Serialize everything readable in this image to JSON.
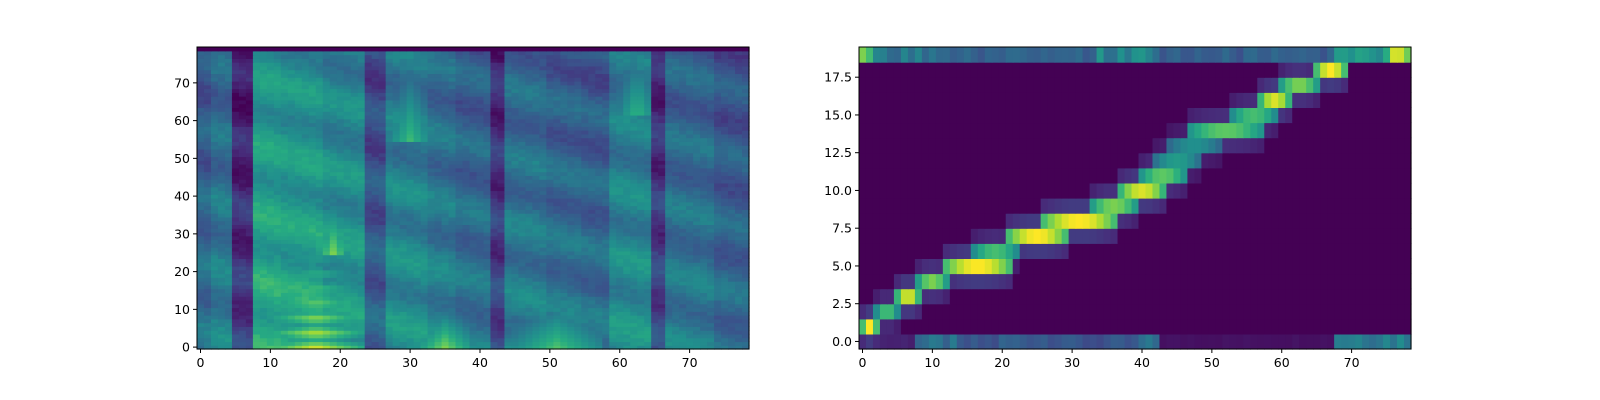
{
  "chart_data": [
    {
      "type": "heatmap",
      "title": "",
      "xlabel": "",
      "ylabel": "",
      "xlim": [
        -0.5,
        78.5
      ],
      "ylim": [
        -0.5,
        79.5
      ],
      "x_ticks": [
        0,
        10,
        20,
        30,
        40,
        50,
        60,
        70
      ],
      "y_ticks": [
        0,
        10,
        20,
        30,
        40,
        50,
        60,
        70
      ],
      "x_tick_labels": [
        "0",
        "10",
        "20",
        "30",
        "40",
        "50",
        "60",
        "70"
      ],
      "y_tick_labels": [
        "0",
        "10",
        "20",
        "30",
        "40",
        "50",
        "60",
        "70"
      ],
      "colormap": "viridis",
      "n_cols": 79,
      "n_rows": 80,
      "column_profile": [
        {
          "x_start": 0,
          "x_end": 2,
          "level": 0.38
        },
        {
          "x_start": 2,
          "x_end": 5,
          "level": 0.44
        },
        {
          "x_start": 5,
          "x_end": 8,
          "level": 0.18
        },
        {
          "x_start": 8,
          "x_end": 12,
          "level": 0.62
        },
        {
          "x_start": 12,
          "x_end": 18,
          "level": 0.6
        },
        {
          "x_start": 18,
          "x_end": 24,
          "level": 0.55
        },
        {
          "x_start": 24,
          "x_end": 27,
          "level": 0.32
        },
        {
          "x_start": 27,
          "x_end": 33,
          "level": 0.5
        },
        {
          "x_start": 33,
          "x_end": 37,
          "level": 0.45
        },
        {
          "x_start": 37,
          "x_end": 42,
          "level": 0.4
        },
        {
          "x_start": 42,
          "x_end": 44,
          "level": 0.22
        },
        {
          "x_start": 44,
          "x_end": 50,
          "level": 0.44
        },
        {
          "x_start": 50,
          "x_end": 55,
          "level": 0.4
        },
        {
          "x_start": 55,
          "x_end": 59,
          "level": 0.38
        },
        {
          "x_start": 59,
          "x_end": 65,
          "level": 0.5
        },
        {
          "x_start": 65,
          "x_end": 67,
          "level": 0.22
        },
        {
          "x_start": 67,
          "x_end": 74,
          "level": 0.42
        },
        {
          "x_start": 74,
          "x_end": 79,
          "level": 0.36
        }
      ],
      "hot_regions": [
        {
          "x_start": 9,
          "x_end": 24,
          "y_start": 0,
          "y_end": 34,
          "level": 0.95
        },
        {
          "x_start": 17,
          "x_end": 21,
          "y_start": 25,
          "y_end": 40,
          "level": 0.8
        },
        {
          "x_start": 31,
          "x_end": 39,
          "y_start": 0,
          "y_end": 10,
          "level": 0.8
        },
        {
          "x_start": 44,
          "x_end": 58,
          "y_start": 0,
          "y_end": 12,
          "level": 0.72
        },
        {
          "x_start": 58,
          "x_end": 65,
          "y_start": 0,
          "y_end": 6,
          "level": 0.55
        },
        {
          "x_start": 27,
          "x_end": 33,
          "y_start": 55,
          "y_end": 75,
          "level": 0.68
        },
        {
          "x_start": 60,
          "x_end": 65,
          "y_start": 62,
          "y_end": 80,
          "level": 0.66
        }
      ]
    },
    {
      "type": "heatmap",
      "title": "",
      "xlabel": "",
      "ylabel": "",
      "xlim": [
        -0.5,
        78.5
      ],
      "ylim": [
        -0.5,
        19.5
      ],
      "x_ticks": [
        0,
        10,
        20,
        30,
        40,
        50,
        60,
        70
      ],
      "y_ticks": [
        0,
        2.5,
        5,
        7.5,
        10,
        12.5,
        15,
        17.5
      ],
      "x_tick_labels": [
        "0",
        "10",
        "20",
        "30",
        "40",
        "50",
        "60",
        "70"
      ],
      "y_tick_labels": [
        "0.0",
        "2.5",
        "5.0",
        "7.5",
        "10.0",
        "12.5",
        "15.0",
        "17.5"
      ],
      "colormap": "viridis",
      "n_cols": 79,
      "n_rows": 20,
      "alignment_path": [
        {
          "y": 1,
          "x_start": 0,
          "x_end": 3,
          "peak": 1.0
        },
        {
          "y": 2,
          "x_start": 2,
          "x_end": 6,
          "peak": 0.7
        },
        {
          "y": 3,
          "x_start": 5,
          "x_end": 9,
          "peak": 0.95
        },
        {
          "y": 4,
          "x_start": 8,
          "x_end": 13,
          "peak": 0.8
        },
        {
          "y": 5,
          "x_start": 12,
          "x_end": 22,
          "peak": 1.0
        },
        {
          "y": 6,
          "x_start": 16,
          "x_end": 23,
          "peak": 0.7
        },
        {
          "y": 7,
          "x_start": 21,
          "x_end": 30,
          "peak": 1.0
        },
        {
          "y": 8,
          "x_start": 26,
          "x_end": 37,
          "peak": 1.0
        },
        {
          "y": 9,
          "x_start": 33,
          "x_end": 40,
          "peak": 0.8
        },
        {
          "y": 10,
          "x_start": 37,
          "x_end": 44,
          "peak": 0.95
        },
        {
          "y": 11,
          "x_start": 40,
          "x_end": 47,
          "peak": 0.75
        },
        {
          "y": 12,
          "x_start": 42,
          "x_end": 49,
          "peak": 0.55
        },
        {
          "y": 13,
          "x_start": 44,
          "x_end": 52,
          "peak": 0.5
        },
        {
          "y": 14,
          "x_start": 47,
          "x_end": 58,
          "peak": 0.75
        },
        {
          "y": 15,
          "x_start": 53,
          "x_end": 60,
          "peak": 0.7
        },
        {
          "y": 16,
          "x_start": 57,
          "x_end": 62,
          "peak": 0.95
        },
        {
          "y": 17,
          "x_start": 60,
          "x_end": 66,
          "peak": 0.8
        },
        {
          "y": 18,
          "x_start": 65,
          "x_end": 70,
          "peak": 1.0
        }
      ],
      "edge_rows": [
        {
          "y": 0,
          "x_start": 0,
          "x_end": 8,
          "level": 0.1
        },
        {
          "y": 0,
          "x_start": 8,
          "x_end": 14,
          "level": 0.35
        },
        {
          "y": 0,
          "x_start": 14,
          "x_end": 20,
          "level": 0.25
        },
        {
          "y": 0,
          "x_start": 20,
          "x_end": 30,
          "level": 0.3
        },
        {
          "y": 0,
          "x_start": 30,
          "x_end": 40,
          "level": 0.25
        },
        {
          "y": 0,
          "x_start": 40,
          "x_end": 43,
          "level": 0.35
        },
        {
          "y": 0,
          "x_start": 43,
          "x_end": 68,
          "level": 0.05
        },
        {
          "y": 0,
          "x_start": 68,
          "x_end": 79,
          "level": 0.45
        },
        {
          "y": 19,
          "x_start": 0,
          "x_end": 2,
          "level": 0.7
        },
        {
          "y": 19,
          "x_start": 2,
          "x_end": 12,
          "level": 0.4
        },
        {
          "y": 19,
          "x_start": 12,
          "x_end": 34,
          "level": 0.3
        },
        {
          "y": 19,
          "x_start": 34,
          "x_end": 43,
          "level": 0.45
        },
        {
          "y": 19,
          "x_start": 43,
          "x_end": 68,
          "level": 0.3
        },
        {
          "y": 19,
          "x_start": 68,
          "x_end": 76,
          "level": 0.55
        },
        {
          "y": 19,
          "x_start": 76,
          "x_end": 79,
          "level": 0.85
        }
      ]
    }
  ]
}
